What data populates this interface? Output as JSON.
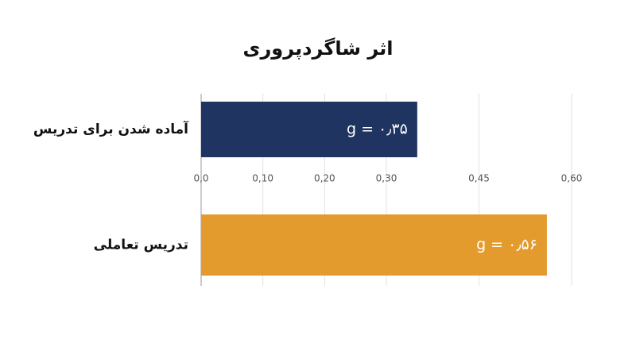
{
  "chart_data": {
    "type": "barh",
    "title": "اثر شاگردپروری",
    "categories": [
      "آماده شدن برای تدریس",
      "تدریس تعاملی"
    ],
    "values": [
      0.35,
      0.56
    ],
    "value_labels": [
      "g = ۰٫۳۵",
      "g = ۰٫۵۶"
    ],
    "colors": [
      "#1f3461",
      "#e39b2e"
    ],
    "xlim": [
      0,
      0.6
    ],
    "xticks": [
      {
        "value": 0,
        "label": "0,0"
      },
      {
        "value": 0.1,
        "label": "0,10"
      },
      {
        "value": 0.2,
        "label": "0,20"
      },
      {
        "value": 0.3,
        "label": "0,30"
      },
      {
        "value": 0.45,
        "label": "0,45"
      },
      {
        "value": 0.6,
        "label": "0,60"
      }
    ],
    "grid": true
  }
}
